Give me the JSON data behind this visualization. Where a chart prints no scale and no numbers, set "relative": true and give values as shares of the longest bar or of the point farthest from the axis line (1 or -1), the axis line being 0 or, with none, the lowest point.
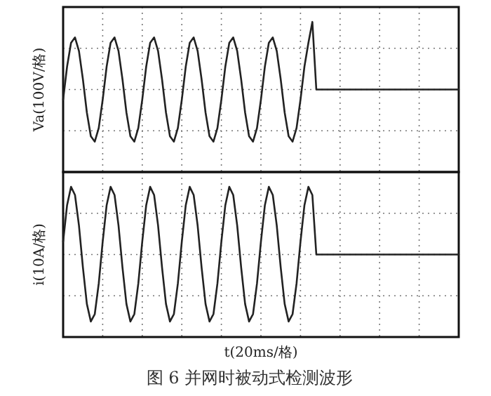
{
  "chart_data": [
    {
      "type": "line",
      "relative": true,
      "grid": true,
      "ylabel": "Va(100V/格)",
      "color": "#222222",
      "categories": [
        null,
        null,
        null,
        null,
        null,
        null,
        null,
        null,
        null,
        null,
        null,
        null,
        null,
        null,
        null,
        null,
        null,
        null,
        null,
        null,
        null,
        null,
        null,
        null,
        null,
        null,
        null,
        null,
        null,
        null,
        null,
        null,
        null,
        null,
        null,
        null,
        null,
        null,
        null,
        null,
        null,
        null,
        null,
        null,
        null,
        null,
        null,
        null,
        null,
        null,
        null,
        null,
        null,
        null,
        null,
        null,
        null,
        null,
        null,
        null,
        null,
        null,
        null,
        null,
        null,
        null,
        null,
        null,
        null,
        null,
        null,
        null,
        null,
        null,
        null,
        null,
        null,
        null,
        null,
        null,
        null,
        null,
        null,
        null,
        null,
        null,
        null,
        null,
        null,
        null,
        null,
        null,
        null,
        null,
        null,
        null,
        null,
        null,
        null,
        null,
        null
      ],
      "values": [
        -0.15,
        0.34,
        0.69,
        0.77,
        0.57,
        0.15,
        -0.34,
        -0.69,
        -0.77,
        -0.57,
        -0.15,
        0.34,
        0.69,
        0.77,
        0.57,
        0.15,
        -0.34,
        -0.69,
        -0.77,
        -0.57,
        -0.15,
        0.34,
        0.69,
        0.77,
        0.57,
        0.15,
        -0.34,
        -0.69,
        -0.77,
        -0.57,
        -0.15,
        0.34,
        0.69,
        0.77,
        0.57,
        0.15,
        -0.34,
        -0.69,
        -0.77,
        -0.57,
        -0.15,
        0.34,
        0.69,
        0.77,
        0.57,
        0.15,
        -0.34,
        -0.69,
        -0.77,
        -0.57,
        -0.15,
        0.34,
        0.69,
        0.77,
        0.57,
        0.15,
        -0.34,
        -0.69,
        -0.77,
        -0.57,
        -0.15,
        0.34,
        0.69,
        1,
        0,
        0,
        0,
        0,
        0,
        0,
        0,
        0,
        0,
        0,
        0,
        0,
        0,
        0,
        0,
        0,
        0,
        0,
        0,
        0,
        0,
        0,
        0,
        0,
        0,
        0,
        0,
        0,
        0,
        0,
        0,
        0,
        0,
        0,
        0,
        0,
        0
      ]
    },
    {
      "type": "line",
      "relative": true,
      "grid": true,
      "ylabel": "i(10A/格)",
      "xlabel": "t(20ms/格)",
      "color": "#222222",
      "annotations": [
        "图 6  并网时被动式检测波形"
      ],
      "categories": [
        null,
        null,
        null,
        null,
        null,
        null,
        null,
        null,
        null,
        null,
        null,
        null,
        null,
        null,
        null,
        null,
        null,
        null,
        null,
        null,
        null,
        null,
        null,
        null,
        null,
        null,
        null,
        null,
        null,
        null,
        null,
        null,
        null,
        null,
        null,
        null,
        null,
        null,
        null,
        null,
        null,
        null,
        null,
        null,
        null,
        null,
        null,
        null,
        null,
        null,
        null,
        null,
        null,
        null,
        null,
        null,
        null,
        null,
        null,
        null,
        null,
        null,
        null,
        null,
        null,
        null,
        null,
        null,
        null,
        null,
        null,
        null,
        null,
        null,
        null,
        null,
        null,
        null,
        null,
        null,
        null,
        null,
        null,
        null,
        null,
        null,
        null,
        null,
        null,
        null,
        null,
        null,
        null,
        null,
        null,
        null,
        null,
        null,
        null,
        null,
        null
      ],
      "values": [
        0.19,
        0.73,
        1,
        0.88,
        0.43,
        -0.19,
        -0.73,
        -0.99,
        -0.88,
        -0.43,
        0.19,
        0.73,
        1,
        0.88,
        0.43,
        -0.19,
        -0.73,
        -0.99,
        -0.88,
        -0.43,
        0.19,
        0.73,
        1,
        0.88,
        0.43,
        -0.19,
        -0.73,
        -0.99,
        -0.88,
        -0.43,
        0.19,
        0.73,
        1,
        0.88,
        0.43,
        -0.19,
        -0.73,
        -0.99,
        -0.88,
        -0.43,
        0.19,
        0.73,
        1,
        0.88,
        0.43,
        -0.19,
        -0.73,
        -0.99,
        -0.88,
        -0.43,
        0.19,
        0.73,
        1,
        0.88,
        0.43,
        -0.19,
        -0.73,
        -0.99,
        -0.88,
        -0.43,
        0.19,
        0.73,
        1,
        0.88,
        0,
        0,
        0,
        0,
        0,
        0,
        0,
        0,
        0,
        0,
        0,
        0,
        0,
        0,
        0,
        0,
        0,
        0,
        0,
        0,
        0,
        0,
        0,
        0,
        0,
        0,
        0,
        0,
        0,
        0,
        0,
        0,
        0,
        0,
        0,
        0,
        0
      ]
    }
  ]
}
